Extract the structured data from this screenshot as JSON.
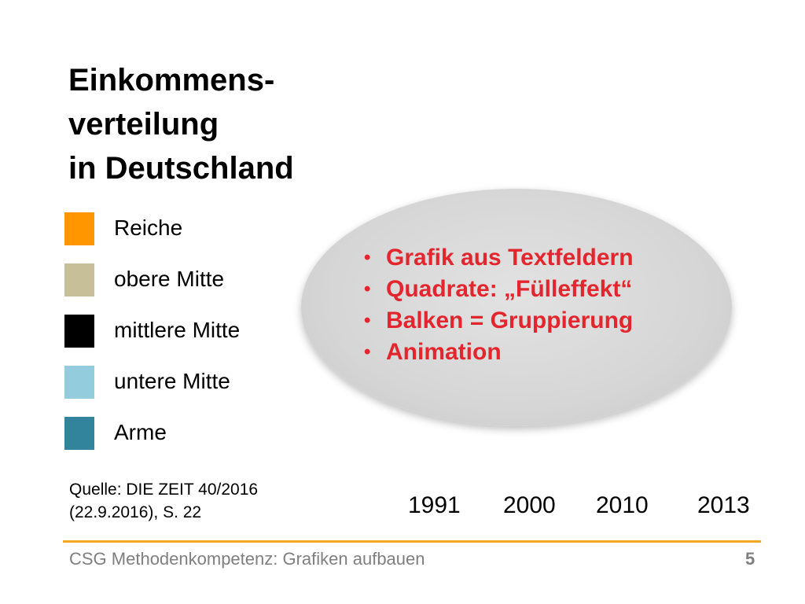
{
  "title": {
    "line1": "Einkommens-",
    "line2": "verteilung",
    "line3": "in Deutschland"
  },
  "legend": [
    {
      "label": "Reiche",
      "color": "#ff9600"
    },
    {
      "label": "obere Mitte",
      "color": "#c6bf97"
    },
    {
      "label": "mittlere Mitte",
      "color": "#000000"
    },
    {
      "label": "untere Mitte",
      "color": "#93cddd"
    },
    {
      "label": "Arme",
      "color": "#31849b"
    }
  ],
  "callout": {
    "bullets": [
      "Grafik aus Textfeldern",
      "Quadrate: „Fülleffekt“",
      "Balken = Gruppierung",
      "Animation"
    ],
    "bullet_glyph": "•",
    "color": "#e3262d"
  },
  "source": {
    "line1": "Quelle: DIE ZEIT 40/2016",
    "line2": "(22.9.2016), S. 22"
  },
  "years": [
    "1991",
    "2000",
    "2010",
    "2013"
  ],
  "footer": {
    "text": "CSG Methodenkompetenz: Grafiken aufbauen",
    "page": "5",
    "rule_color": "#f5a623"
  }
}
